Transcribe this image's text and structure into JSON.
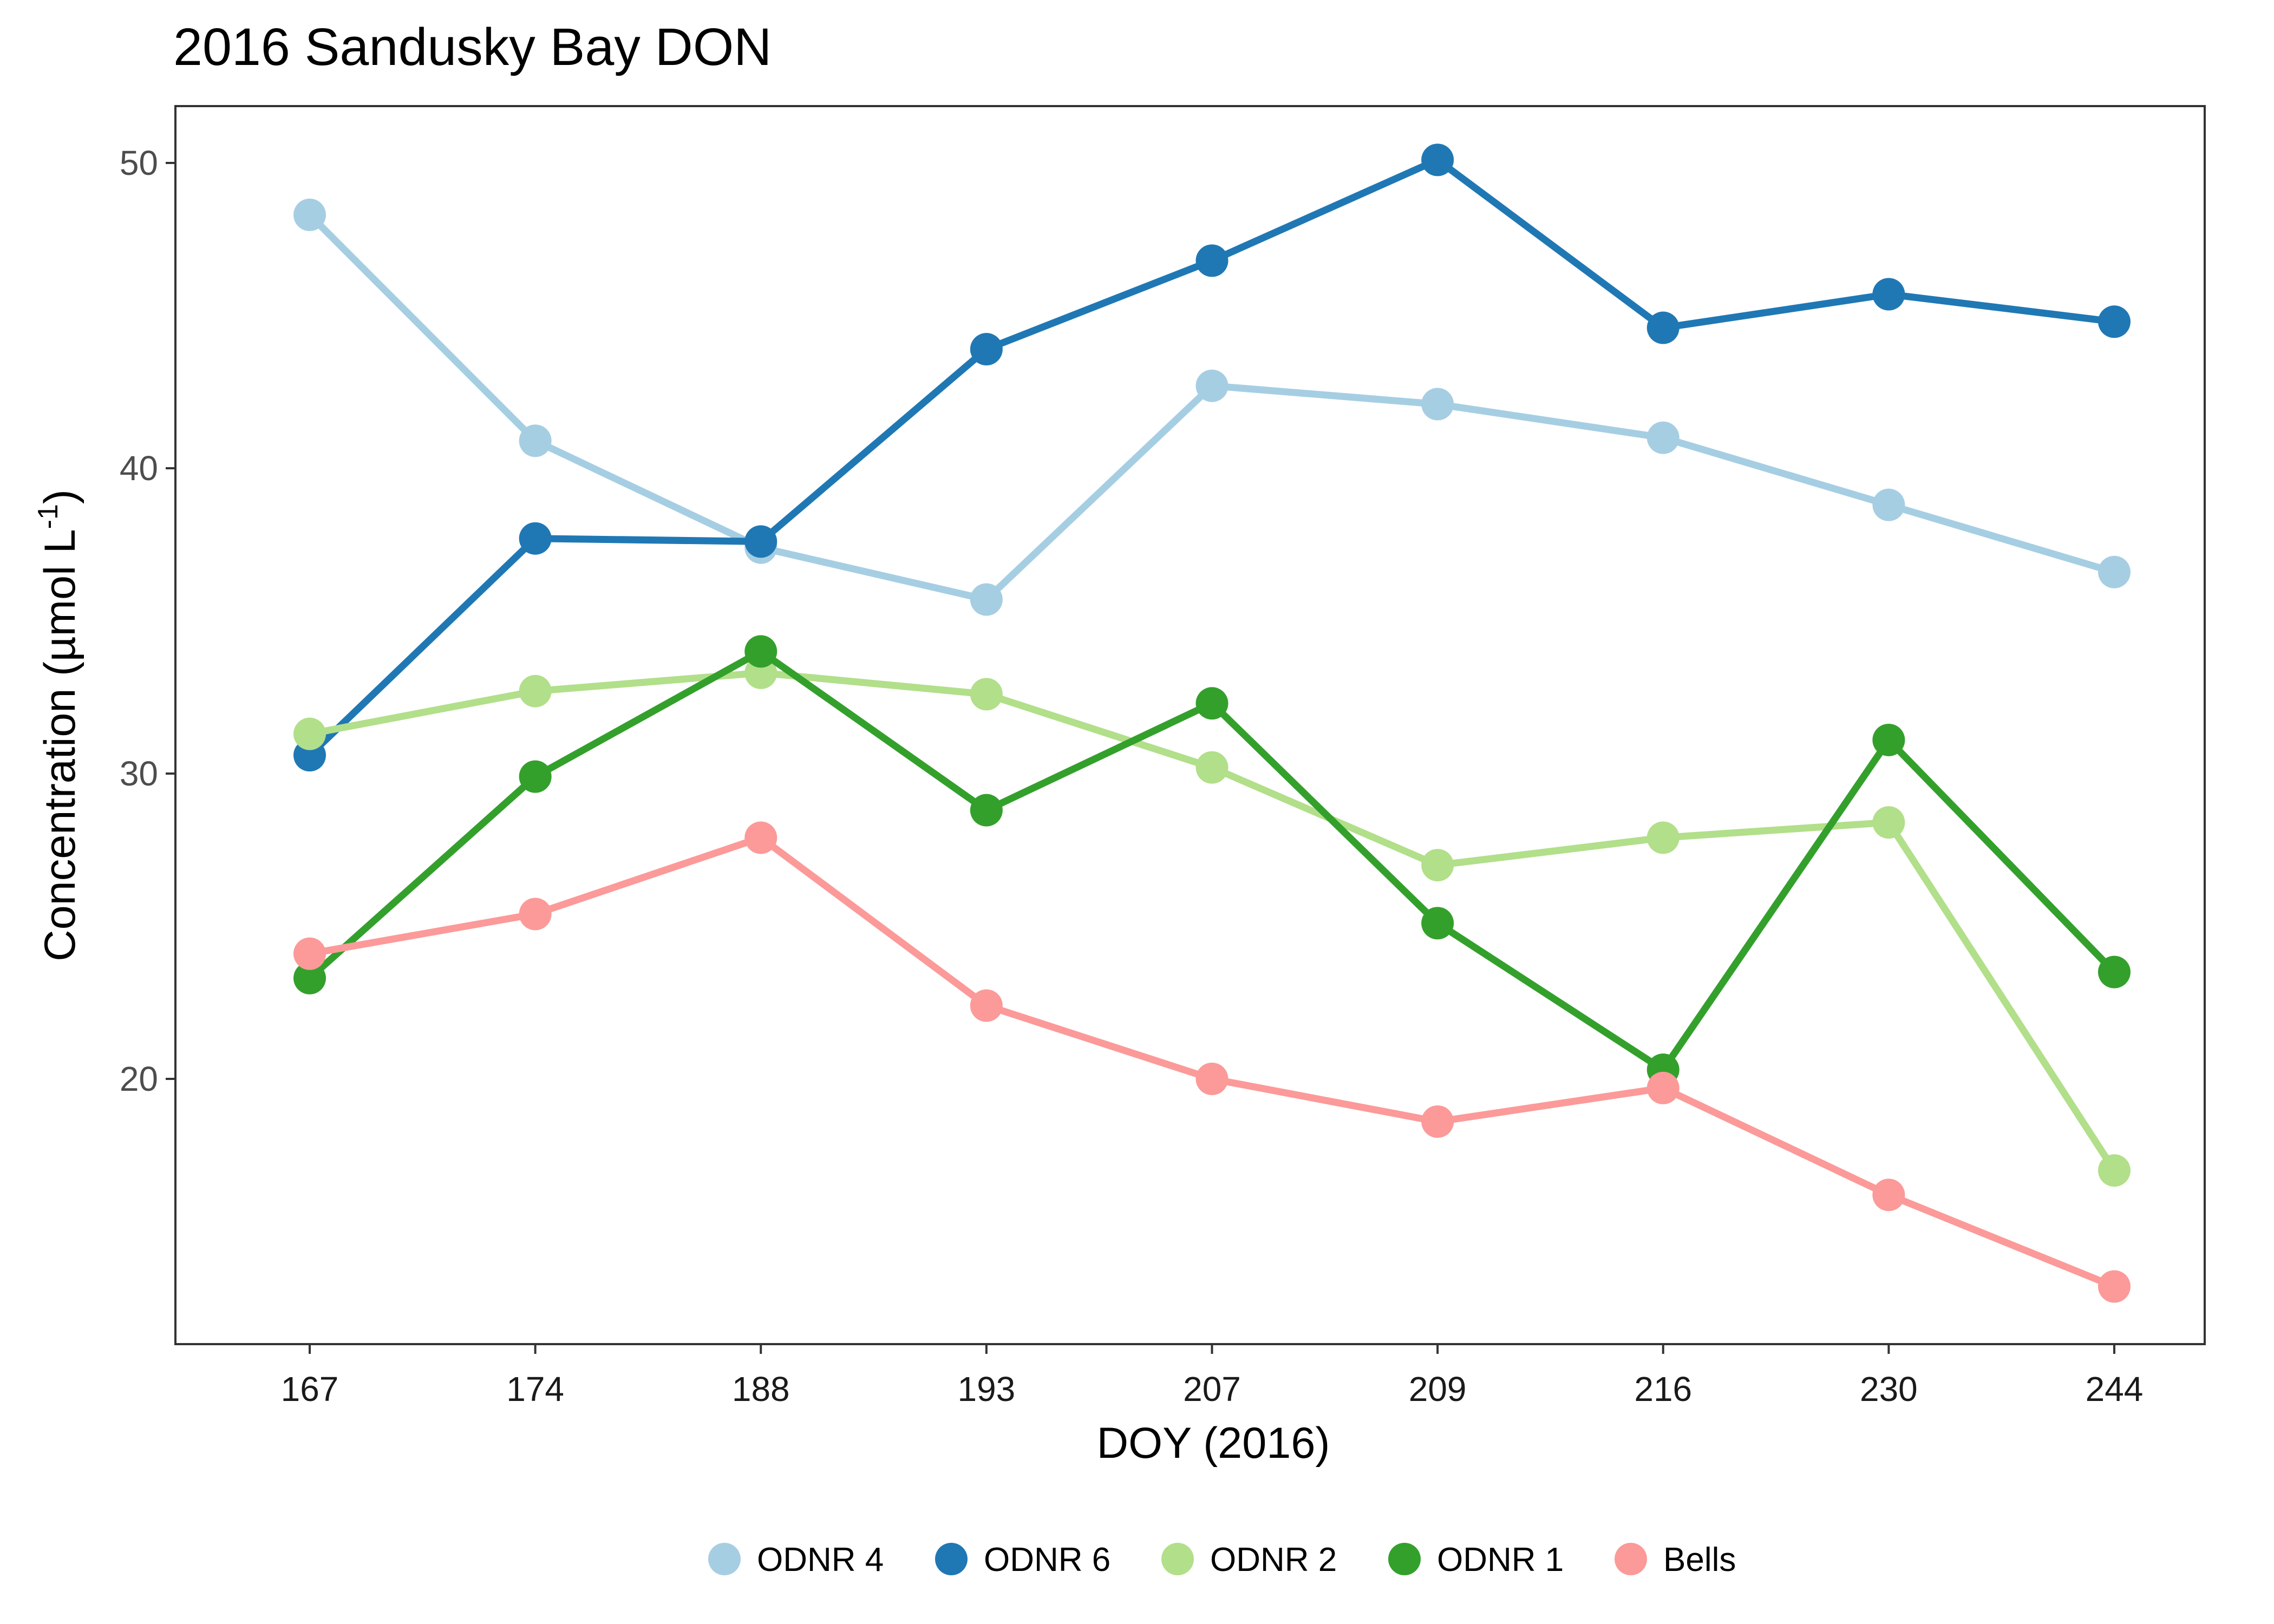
{
  "chart_data": {
    "type": "line",
    "title": "2016 Sandusky Bay DON",
    "xlabel": "DOY (2016)",
    "ylabel": "Concentration (µmol L⁻¹)",
    "ylabel_main": "Concentration (µmol L",
    "ylabel_sup": "-1",
    "ylabel_close": ")",
    "categories": [
      "167",
      "174",
      "188",
      "193",
      "207",
      "209",
      "216",
      "230",
      "244"
    ],
    "y_ticks": [
      20,
      30,
      40,
      50
    ],
    "ylim": [
      12.0,
      52.0
    ],
    "grid": false,
    "legend_position": "bottom",
    "series": [
      {
        "name": "ODNR 4",
        "color": "#a6cee3",
        "values": [
          48.3,
          40.9,
          37.4,
          35.7,
          42.7,
          42.1,
          41.0,
          38.8,
          36.6
        ]
      },
      {
        "name": "ODNR 6",
        "color": "#1f78b4",
        "values": [
          30.6,
          37.7,
          37.6,
          43.9,
          46.8,
          50.1,
          44.6,
          45.7,
          44.8
        ]
      },
      {
        "name": "ODNR 2",
        "color": "#b2df8a",
        "values": [
          31.3,
          32.7,
          33.3,
          32.6,
          30.2,
          27.0,
          27.9,
          28.4,
          17.0
        ]
      },
      {
        "name": "ODNR 1",
        "color": "#33a02c",
        "values": [
          23.3,
          29.9,
          34.0,
          28.8,
          32.3,
          25.1,
          20.3,
          31.1,
          23.5
        ]
      },
      {
        "name": "Bells",
        "color": "#fb9a99",
        "values": [
          24.1,
          25.4,
          27.9,
          22.4,
          20.0,
          18.6,
          19.7,
          16.2,
          13.2
        ]
      }
    ]
  }
}
